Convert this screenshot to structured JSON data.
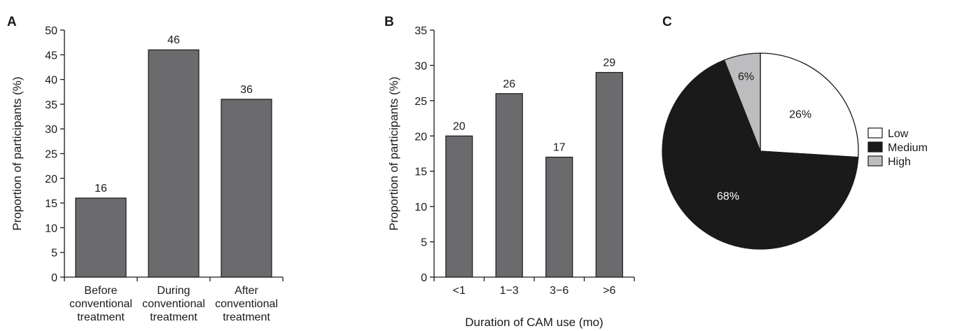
{
  "chart_data": [
    {
      "panel": "A",
      "type": "bar",
      "title": "",
      "xlabel": "",
      "ylabel": "Proportion of participants (%)",
      "categories": [
        [
          "Before",
          "conventional",
          "treatment"
        ],
        [
          "During",
          "conventional",
          "treatment"
        ],
        [
          "After",
          "conventional",
          "treatment"
        ]
      ],
      "values": [
        16,
        46,
        36
      ],
      "data_labels": [
        "16",
        "46",
        "36"
      ],
      "ylim": [
        0,
        50
      ],
      "yticks": [
        0,
        5,
        10,
        15,
        20,
        25,
        30,
        35,
        40,
        45,
        50
      ],
      "grid": false,
      "bar_color": "#6b6b6d"
    },
    {
      "panel": "B",
      "type": "bar",
      "title": "",
      "xlabel": "Duration of CAM use (mo)",
      "ylabel": "Proportion of participants (%)",
      "categories": [
        [
          "<1"
        ],
        [
          "1−3"
        ],
        [
          "3−6"
        ],
        [
          ">6"
        ]
      ],
      "values": [
        20,
        26,
        17,
        29
      ],
      "data_labels": [
        "20",
        "26",
        "17",
        "29"
      ],
      "ylim": [
        0,
        35
      ],
      "yticks": [
        0,
        5,
        10,
        15,
        20,
        25,
        30,
        35
      ],
      "grid": false,
      "bar_color": "#6b6b6d"
    },
    {
      "panel": "C",
      "type": "pie",
      "title": "",
      "slices": [
        {
          "name": "Low",
          "value": 26,
          "label": "26%",
          "color": "#ffffff",
          "label_color": "#1a1a1a"
        },
        {
          "name": "Medium",
          "value": 68,
          "label": "68%",
          "color": "#1a1a1a",
          "label_color": "#ffffff"
        },
        {
          "name": "High",
          "value": 6,
          "label": "6%",
          "color": "#bdbdbf",
          "label_color": "#1a1a1a"
        }
      ],
      "start": "12 o'clock",
      "direction": "clockwise",
      "legend_position": "right"
    }
  ]
}
